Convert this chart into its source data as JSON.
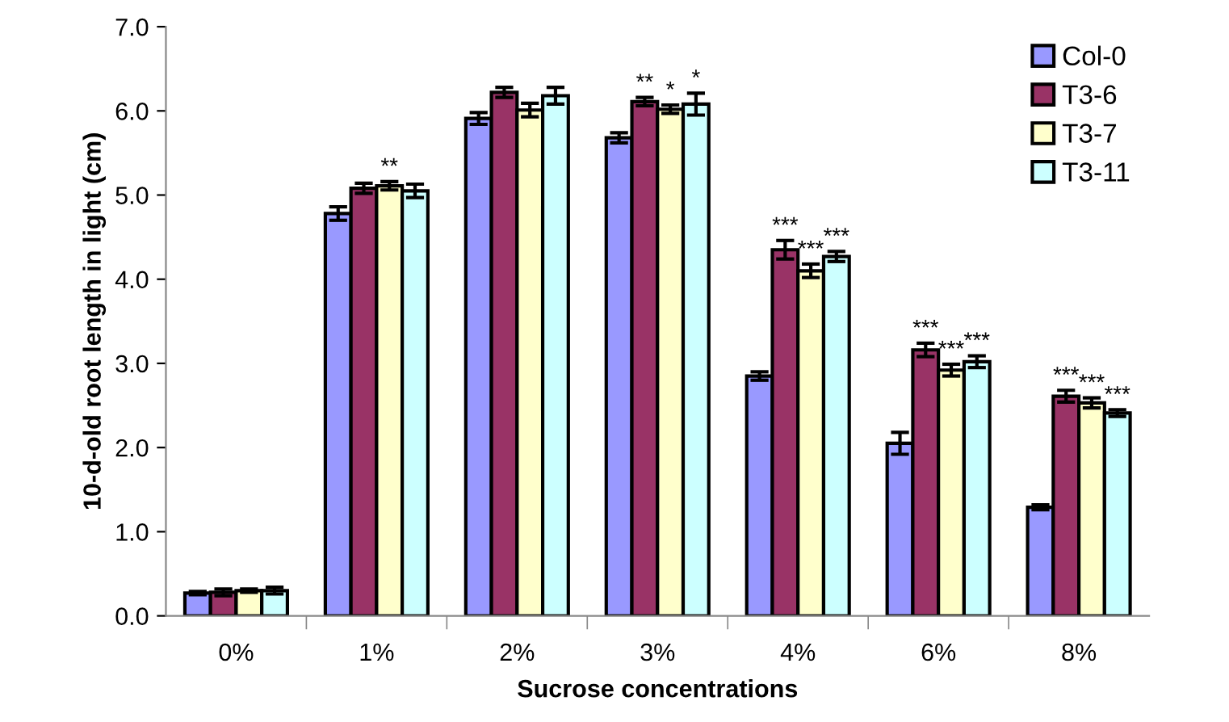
{
  "chart_data": {
    "type": "bar",
    "xlabel": "Sucrose concentrations",
    "ylabel": "10-d-old root length in light (cm)",
    "categories": [
      "0%",
      "1%",
      "2%",
      "3%",
      "4%",
      "6%",
      "8%"
    ],
    "series": [
      {
        "name": "Col-0",
        "color": "#9999ff",
        "values": [
          0.27,
          4.78,
          5.91,
          5.68,
          2.85,
          2.05,
          1.29
        ],
        "errors": [
          0.02,
          0.08,
          0.07,
          0.06,
          0.05,
          0.13,
          0.03
        ]
      },
      {
        "name": "T3-6",
        "color": "#993366",
        "values": [
          0.28,
          5.08,
          6.22,
          6.11,
          4.35,
          3.16,
          2.61
        ],
        "errors": [
          0.04,
          0.06,
          0.06,
          0.05,
          0.11,
          0.08,
          0.07
        ],
        "value_labels": [
          null,
          null,
          null,
          "**",
          "***",
          "***",
          "***"
        ]
      },
      {
        "name": "T3-7",
        "color": "#ffffcc",
        "values": [
          0.3,
          5.11,
          6.01,
          6.02,
          4.1,
          2.92,
          2.53
        ],
        "errors": [
          0.02,
          0.05,
          0.08,
          0.05,
          0.08,
          0.07,
          0.06
        ],
        "value_labels": [
          null,
          "**",
          null,
          "*",
          "***",
          "***",
          "***"
        ]
      },
      {
        "name": "T3-11",
        "color": "#ccffff",
        "values": [
          0.3,
          5.05,
          6.18,
          6.08,
          4.27,
          3.02,
          2.41
        ],
        "errors": [
          0.04,
          0.08,
          0.1,
          0.13,
          0.06,
          0.07,
          0.04
        ],
        "value_labels": [
          null,
          null,
          null,
          "*",
          "***",
          "***",
          "***"
        ]
      }
    ],
    "ylim": [
      0,
      7
    ],
    "yticks": [
      {
        "value": 0,
        "label": "0.0"
      },
      {
        "value": 1,
        "label": "1.0"
      },
      {
        "value": 2,
        "label": "2.0"
      },
      {
        "value": 3,
        "label": "3.0"
      },
      {
        "value": 4,
        "label": "4.0"
      },
      {
        "value": 5,
        "label": "5.0"
      },
      {
        "value": 6,
        "label": "6.0"
      },
      {
        "value": 7,
        "label": "7.0"
      }
    ],
    "legend": "top right",
    "grid": false
  }
}
